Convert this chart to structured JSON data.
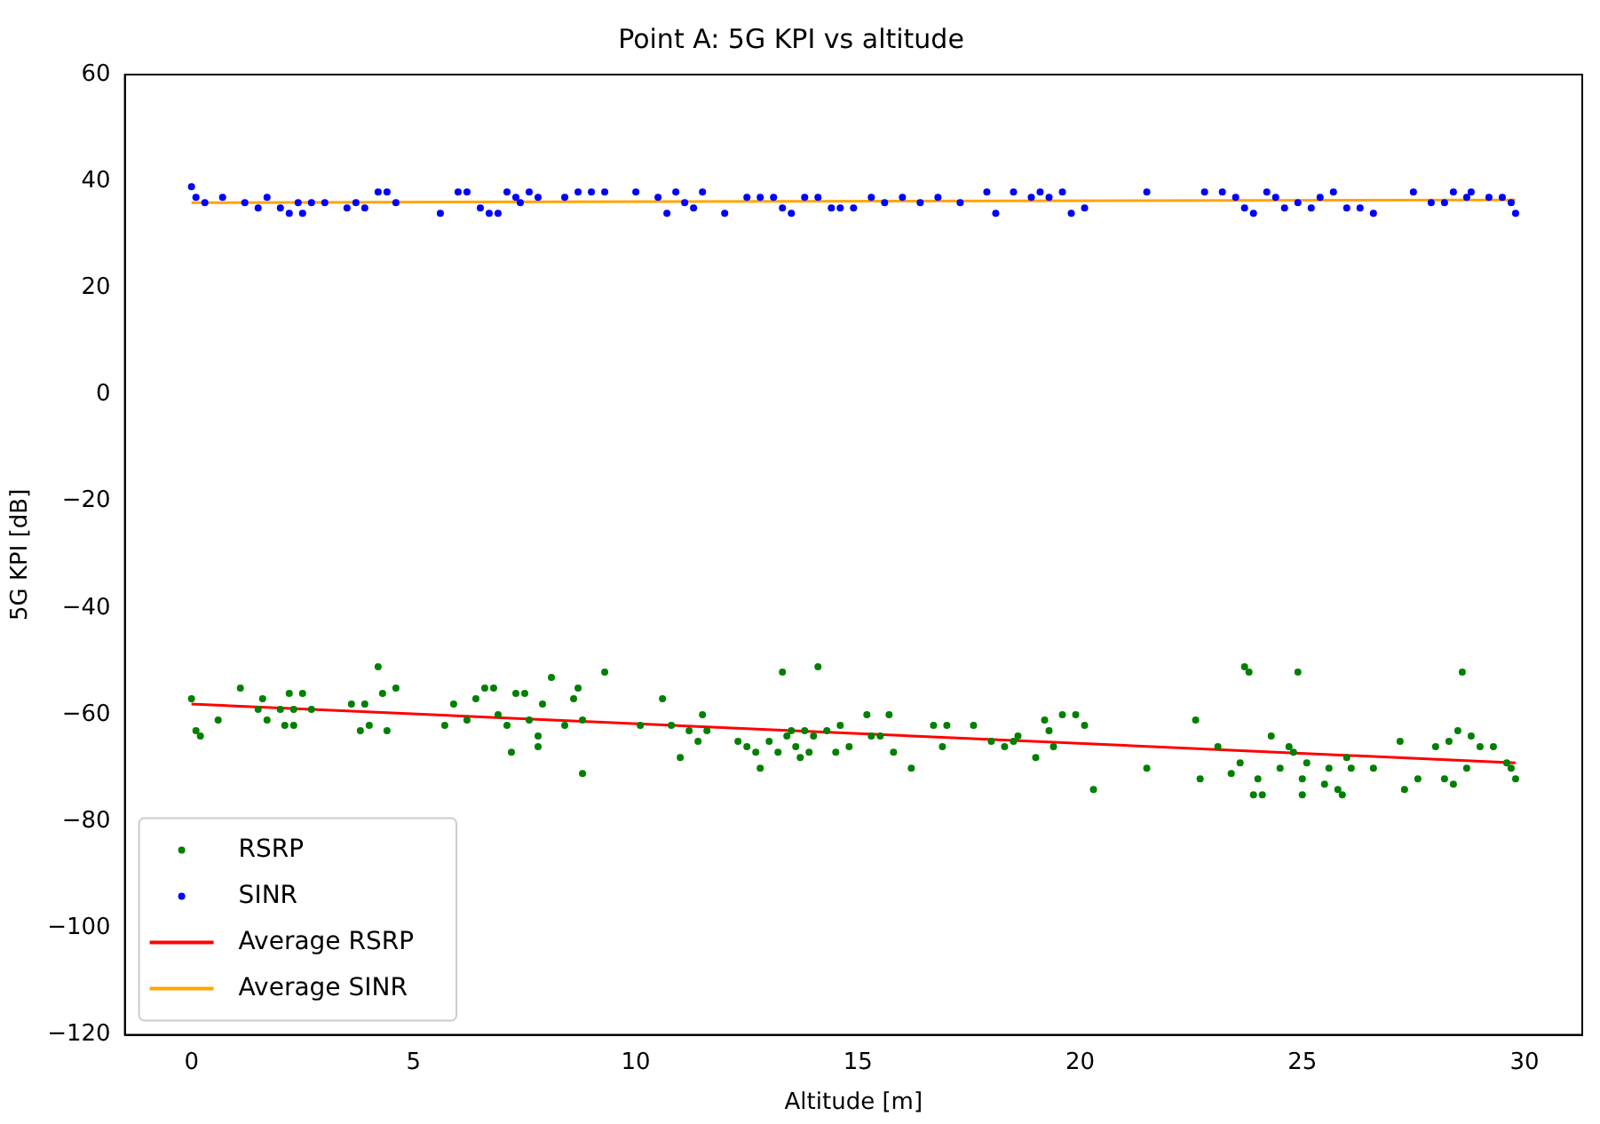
{
  "chart_data": {
    "type": "scatter",
    "title": "Point A: 5G KPI vs altitude",
    "xlabel": "Altitude [m]",
    "ylabel": "5G KPI [dB]",
    "xlim": [
      -1.5,
      31.3
    ],
    "xticks": [
      0,
      5,
      10,
      15,
      20,
      25,
      30
    ],
    "ylim": [
      -120,
      60
    ],
    "yticks": [
      -120,
      -100,
      -80,
      -60,
      -40,
      -20,
      0,
      20,
      40,
      60
    ],
    "grid": false,
    "legend": "bottom left",
    "marker": "circle",
    "series": [
      {
        "name": "RSRP",
        "color": "#008000",
        "x": [
          0,
          0.1,
          0.2,
          0.6,
          1.1,
          1.5,
          1.7,
          1.6,
          2.0,
          2.1,
          2.2,
          2.3,
          2.3,
          2.5,
          2.7,
          3.6,
          3.8,
          3.9,
          4.0,
          4.2,
          4.3,
          4.4,
          4.6,
          5.7,
          5.9,
          6.2,
          6.4,
          6.6,
          6.8,
          6.9,
          7.1,
          7.2,
          7.3,
          7.5,
          7.6,
          7.8,
          7.8,
          7.9,
          8.1,
          8.4,
          8.6,
          8.7,
          8.8,
          8.8,
          9.3,
          10.1,
          10.6,
          10.8,
          11.0,
          11.2,
          11.4,
          11.5,
          11.6,
          12.3,
          12.5,
          12.7,
          12.8,
          13.0,
          13.2,
          13.3,
          13.4,
          13.5,
          13.6,
          13.7,
          13.8,
          13.9,
          14.0,
          14.1,
          14.3,
          14.5,
          14.6,
          14.8,
          15.2,
          15.3,
          15.5,
          15.7,
          15.8,
          16.2,
          16.7,
          16.9,
          17.0,
          17.6,
          18.0,
          18.3,
          18.5,
          18.6,
          19.0,
          19.2,
          19.3,
          19.4,
          19.6,
          19.9,
          20.1,
          20.3,
          21.5,
          22.6,
          22.7,
          23.1,
          23.4,
          23.6,
          23.7,
          23.8,
          23.9,
          24.0,
          24.1,
          24.3,
          24.5,
          24.7,
          24.8,
          24.9,
          25.0,
          25.0,
          25.1,
          25.5,
          25.6,
          25.8,
          25.9,
          26.0,
          26.1,
          26.6,
          27.2,
          27.3,
          27.6,
          28.0,
          28.2,
          28.3,
          28.4,
          28.5,
          28.6,
          28.7,
          28.8,
          29.0,
          29.3,
          29.6,
          29.7,
          29.8
        ],
        "values": [
          -57,
          -63,
          -64,
          -61,
          -55,
          -59,
          -61,
          -57,
          -59,
          -62,
          -56,
          -59,
          -62,
          -56,
          -59,
          -58,
          -63,
          -58,
          -62,
          -51,
          -56,
          -63,
          -55,
          -62,
          -58,
          -61,
          -57,
          -55,
          -55,
          -60,
          -62,
          -67,
          -56,
          -56,
          -61,
          -64,
          -66,
          -58,
          -53,
          -62,
          -57,
          -55,
          -71,
          -61,
          -52,
          -62,
          -57,
          -62,
          -68,
          -63,
          -65,
          -60,
          -63,
          -65,
          -66,
          -67,
          -70,
          -65,
          -67,
          -52,
          -64,
          -63,
          -66,
          -68,
          -63,
          -67,
          -64,
          -51,
          -63,
          -67,
          -62,
          -66,
          -60,
          -64,
          -64,
          -60,
          -67,
          -70,
          -62,
          -66,
          -62,
          -62,
          -65,
          -66,
          -65,
          -64,
          -68,
          -61,
          -63,
          -66,
          -60,
          -60,
          -62,
          -74,
          -70,
          -61,
          -72,
          -66,
          -71,
          -69,
          -51,
          -52,
          -75,
          -72,
          -75,
          -64,
          -70,
          -66,
          -67,
          -52,
          -72,
          -75,
          -69,
          -73,
          -70,
          -74,
          -75,
          -68,
          -70,
          -70,
          -65,
          -74,
          -72,
          -66,
          -72,
          -65,
          -73,
          -63,
          -52,
          -70,
          -64,
          -66,
          -66,
          -69,
          -70,
          -72
        ]
      },
      {
        "name": "SINR",
        "color": "#0000ff",
        "x": [
          0,
          0.1,
          0.3,
          0.7,
          1.2,
          1.5,
          1.7,
          2.0,
          2.2,
          2.4,
          2.5,
          2.7,
          3.0,
          3.5,
          3.7,
          3.9,
          4.2,
          4.4,
          4.6,
          5.6,
          6.0,
          6.2,
          6.5,
          6.7,
          6.9,
          7.1,
          7.3,
          7.4,
          7.6,
          7.8,
          8.4,
          8.7,
          9.0,
          9.3,
          10.0,
          10.5,
          10.7,
          10.9,
          11.1,
          11.3,
          11.5,
          12.0,
          12.5,
          12.8,
          13.1,
          13.3,
          13.5,
          13.8,
          14.1,
          14.4,
          14.6,
          14.9,
          15.3,
          15.6,
          16.0,
          16.4,
          16.8,
          17.3,
          17.9,
          18.1,
          18.5,
          18.9,
          19.1,
          19.3,
          19.6,
          19.8,
          20.1,
          21.5,
          22.8,
          23.2,
          23.5,
          23.7,
          23.9,
          24.2,
          24.4,
          24.6,
          24.9,
          25.2,
          25.4,
          25.7,
          26.0,
          26.3,
          26.6,
          27.5,
          27.9,
          28.2,
          28.4,
          28.7,
          28.8,
          29.2,
          29.5,
          29.7,
          29.8
        ],
        "values": [
          39,
          37,
          36,
          37,
          36,
          35,
          37,
          35,
          34,
          36,
          34,
          36,
          36,
          35,
          36,
          35,
          38,
          38,
          36,
          34,
          38,
          38,
          35,
          34,
          34,
          38,
          37,
          36,
          38,
          37,
          37,
          38,
          38,
          38,
          38,
          37,
          34,
          38,
          36,
          35,
          38,
          34,
          37,
          37,
          37,
          35,
          34,
          37,
          37,
          35,
          35,
          35,
          37,
          36,
          37,
          36,
          37,
          36,
          38,
          34,
          38,
          37,
          38,
          37,
          38,
          34,
          35,
          38,
          38,
          38,
          37,
          35,
          34,
          38,
          37,
          35,
          36,
          35,
          37,
          38,
          35,
          35,
          34,
          38,
          36,
          36,
          38,
          37,
          38,
          37,
          37,
          36,
          34
        ]
      },
      {
        "name": "Average RSRP",
        "type": "line",
        "marker": "none",
        "color": "#ff0000",
        "x": [
          0,
          29.8
        ],
        "values": [
          -58,
          -69
        ]
      },
      {
        "name": "Average SINR",
        "type": "line",
        "marker": "none",
        "color": "#ffa500",
        "x": [
          0,
          29.8
        ],
        "values": [
          36,
          36.5
        ]
      }
    ]
  }
}
